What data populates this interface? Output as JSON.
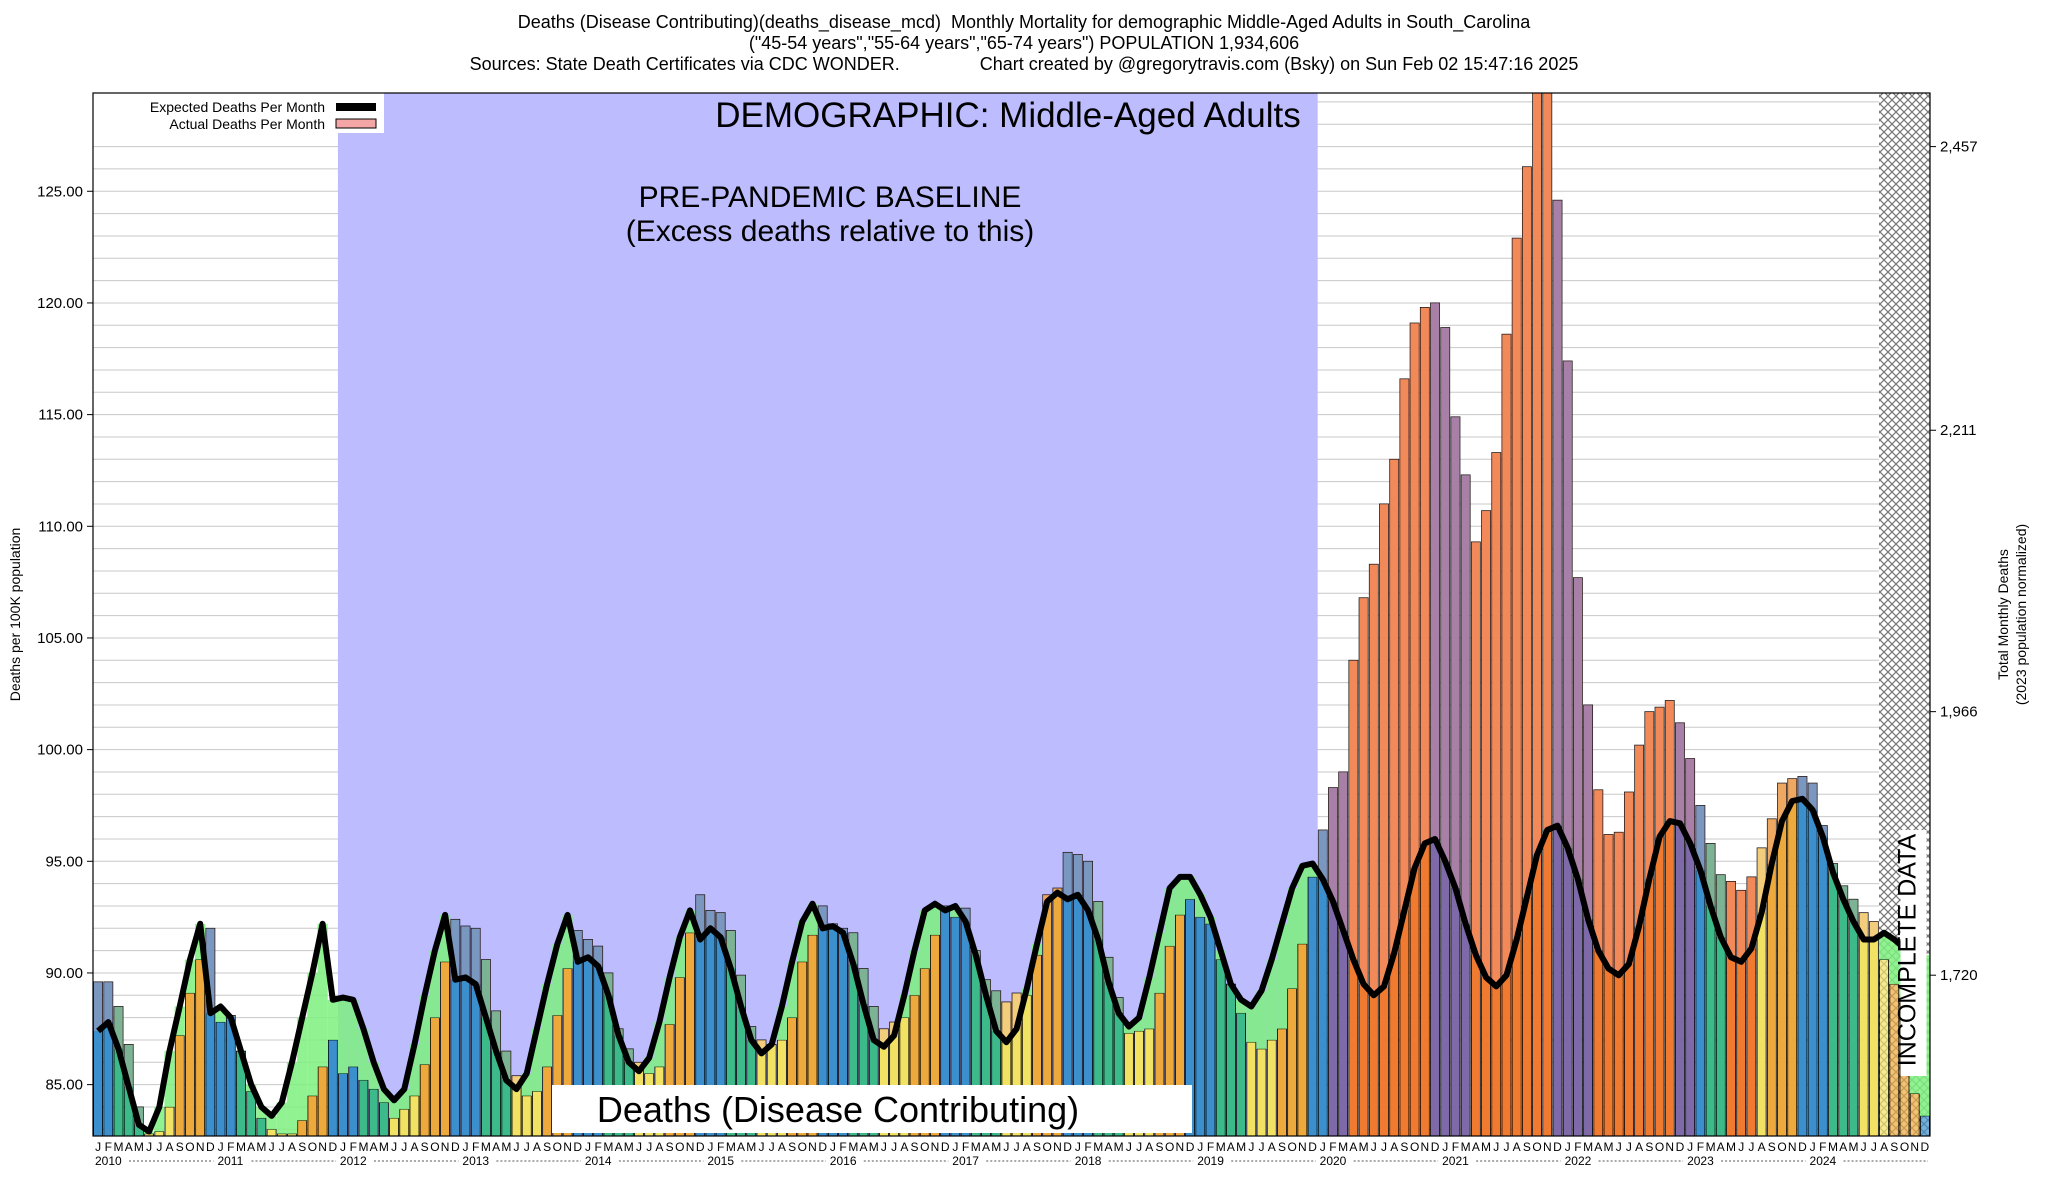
{
  "header": {
    "title_line1": "Deaths (Disease Contributing)(deaths_disease_mcd)  Monthly Mortality for demographic Middle-Aged Adults in South_Carolina",
    "title_line2": "(\"45-54 years\",\"55-64 years\",\"65-74 years\") POPULATION 1,934,606",
    "title_line3": "Sources: State Death Certificates via CDC WONDER.                Chart created by @gregorytravis.com (Bsky) on Sun Feb 02 15:47:16 2025"
  },
  "chart_data": {
    "type": "bar",
    "title": "DEMOGRAPHIC: Middle-Aged Adults",
    "baseline_label_line1": "PRE-PANDEMIC BASELINE",
    "baseline_label_line2": "(Excess deaths relative to this)",
    "bottom_label": "Deaths (Disease Contributing)",
    "incomplete_label": "INCOMPLETE DATA",
    "ylabel": "Deaths per 100K population",
    "y2label_line1": "Total Monthly Deaths",
    "y2label_line2": "(2023 population normalized)",
    "ylim": [
      82.7,
      129.4
    ],
    "yticks": [
      "85.00",
      "90.00",
      "95.00",
      "100.00",
      "105.00",
      "110.00",
      "115.00",
      "120.00",
      "125.00"
    ],
    "y2ticks": [
      {
        "value": 89.9,
        "label": "1,720"
      },
      {
        "value": 101.7,
        "label": "1,966"
      },
      {
        "value": 114.3,
        "label": "2,211"
      },
      {
        "value": 127.0,
        "label": "2,457"
      }
    ],
    "x_start": "2010-01",
    "x_end": "2024-12",
    "years": [
      "2010",
      "2011",
      "2012",
      "2013",
      "2014",
      "2015",
      "2016",
      "2017",
      "2018",
      "2019",
      "2020",
      "2021",
      "2022",
      "2023",
      "2024"
    ],
    "month_letters": [
      "J",
      "F",
      "M",
      "A",
      "M",
      "J",
      "J",
      "A",
      "S",
      "O",
      "N",
      "D"
    ],
    "baseline_period": [
      "2012-01",
      "2019-12"
    ],
    "incomplete_period": [
      "2024-08",
      "2024-12"
    ],
    "legend": [
      {
        "label": "Expected Deaths Per Month",
        "color": "#000000"
      },
      {
        "label": "Actual Deaths Per Month",
        "color": "#f4a6a6"
      }
    ],
    "colors": {
      "baseline_band": "#bcbcff",
      "excess_fill": "#f4a6a6",
      "deficit_fill": "#7cf07c",
      "expected_line": "#000000",
      "bar_winter": "#3a8fcc",
      "bar_spring": "#3cba8a",
      "bar_summer": "#f2e264",
      "bar_autumn": "#eda93c",
      "bar_excess": "#f07a30",
      "bar_excess_winter": "#7e6aa8"
    },
    "series": [
      {
        "name": "Actual Deaths Per Month",
        "values": [
          89.6,
          89.6,
          88.5,
          86.8,
          84.0,
          82.8,
          82.9,
          84.0,
          87.2,
          89.1,
          90.6,
          92.0,
          87.8,
          88.1,
          86.5,
          84.7,
          83.5,
          83.0,
          82.8,
          82.8,
          83.4,
          84.5,
          85.8,
          87.0,
          85.5,
          85.8,
          85.2,
          84.8,
          84.2,
          83.5,
          83.9,
          84.5,
          85.9,
          88.0,
          90.5,
          92.4,
          92.1,
          92.0,
          90.6,
          88.3,
          86.5,
          85.4,
          84.5,
          84.7,
          85.8,
          88.1,
          90.2,
          91.9,
          91.5,
          91.2,
          90.0,
          87.5,
          86.6,
          86.0,
          85.5,
          85.8,
          87.7,
          89.8,
          91.8,
          93.5,
          92.8,
          92.7,
          91.9,
          89.9,
          87.6,
          87.0,
          86.8,
          87.0,
          88.0,
          90.5,
          91.7,
          93.0,
          92.2,
          92.0,
          91.8,
          90.2,
          88.5,
          87.5,
          87.8,
          88.0,
          89.0,
          90.2,
          91.7,
          93.0,
          92.5,
          92.9,
          91.0,
          89.7,
          89.2,
          88.7,
          89.1,
          89.0,
          90.8,
          93.5,
          93.8,
          95.4,
          95.3,
          95.0,
          93.2,
          90.7,
          88.9,
          87.3,
          87.4,
          87.5,
          89.1,
          91.2,
          92.6,
          93.3,
          92.5,
          92.2,
          90.6,
          89.5,
          88.2,
          86.9,
          86.6,
          87.0,
          87.5,
          89.3,
          91.3,
          94.3,
          96.4,
          98.3,
          99.0,
          104.0,
          106.8,
          108.3,
          111.0,
          113.0,
          116.6,
          119.1,
          119.8,
          120.0,
          118.9,
          114.9,
          112.3,
          109.3,
          110.7,
          113.3,
          118.6,
          122.9,
          126.1,
          129.4,
          129.4,
          124.6,
          117.4,
          107.7,
          102.0,
          98.2,
          96.2,
          96.3,
          98.1,
          100.2,
          101.7,
          101.9,
          102.2,
          101.2,
          99.6,
          97.5,
          95.8,
          94.4,
          94.1,
          93.7,
          94.3,
          95.6,
          96.9,
          98.5,
          98.7,
          98.8,
          98.5,
          96.6,
          94.9,
          93.9,
          93.3,
          92.7,
          92.3,
          90.6,
          89.5,
          88.8,
          84.6,
          83.6
        ]
      },
      {
        "name": "Expected Deaths Per Month",
        "values": [
          87.4,
          87.8,
          86.6,
          84.9,
          83.2,
          82.9,
          84.0,
          86.5,
          88.5,
          90.6,
          92.2,
          88.2,
          88.5,
          88.0,
          86.5,
          85.0,
          84.0,
          83.6,
          84.2,
          86.0,
          88.0,
          90.0,
          92.2,
          88.8,
          88.9,
          88.8,
          87.5,
          86.0,
          84.8,
          84.3,
          84.8,
          86.8,
          89.0,
          91.0,
          92.6,
          89.7,
          89.8,
          89.5,
          88.0,
          86.5,
          85.2,
          84.8,
          85.5,
          87.5,
          89.5,
          91.3,
          92.6,
          90.5,
          90.7,
          90.3,
          89.0,
          87.2,
          86.0,
          85.6,
          86.2,
          87.8,
          89.8,
          91.6,
          92.8,
          91.5,
          92.0,
          91.6,
          90.2,
          88.5,
          87.0,
          86.4,
          86.8,
          88.5,
          90.5,
          92.3,
          93.1,
          92.0,
          92.1,
          91.8,
          90.4,
          88.6,
          87.0,
          86.7,
          87.2,
          89.0,
          91.0,
          92.8,
          93.1,
          92.8,
          93.0,
          92.3,
          90.8,
          89.0,
          87.4,
          86.9,
          87.5,
          89.3,
          91.3,
          93.2,
          93.6,
          93.3,
          93.5,
          92.8,
          91.5,
          89.6,
          88.2,
          87.6,
          88.0,
          89.8,
          91.8,
          93.8,
          94.3,
          94.3,
          93.5,
          92.5,
          91.0,
          89.5,
          88.8,
          88.5,
          89.2,
          90.6,
          92.2,
          93.8,
          94.8,
          94.9,
          94.2,
          93.2,
          91.9,
          90.6,
          89.5,
          89.0,
          89.4,
          90.9,
          92.8,
          94.7,
          95.8,
          96.0,
          95.0,
          93.8,
          92.2,
          90.8,
          89.8,
          89.4,
          89.9,
          91.5,
          93.4,
          95.3,
          96.4,
          96.6,
          95.6,
          94.2,
          92.4,
          91.0,
          90.2,
          89.9,
          90.4,
          92.1,
          94.2,
          96.1,
          96.8,
          96.7,
          95.8,
          94.6,
          93.0,
          91.6,
          90.7,
          90.5,
          91.1,
          92.7,
          94.9,
          96.8,
          97.7,
          97.8,
          97.3,
          96.1,
          94.5,
          93.3,
          92.3,
          91.5,
          91.5,
          91.8,
          91.5,
          91.1,
          90.8,
          90.8
        ]
      }
    ]
  }
}
